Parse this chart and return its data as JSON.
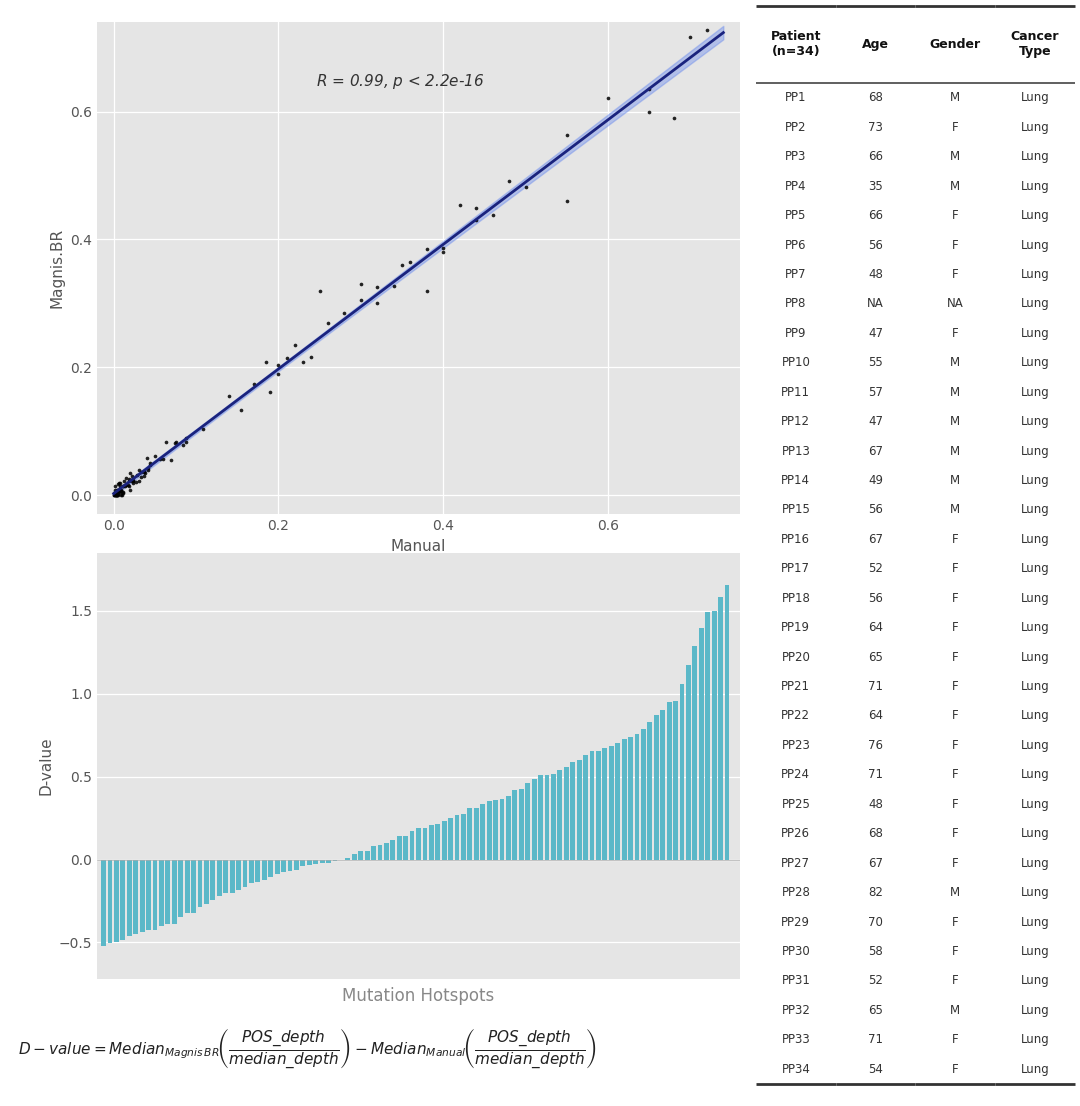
{
  "scatter_xlabel": "Manual",
  "scatter_ylabel": "Magnis.BR",
  "bar_xlabel": "Mutation Hotspots",
  "bar_ylabel": "D-value",
  "bar_color": "#5BB8C8",
  "bg_color": "#E5E5E5",
  "line_color": "#1a237e",
  "ci_color": "#6688EE",
  "table_patients": [
    "PP1",
    "PP2",
    "PP3",
    "PP4",
    "PP5",
    "PP6",
    "PP7",
    "PP8",
    "PP9",
    "PP10",
    "PP11",
    "PP12",
    "PP13",
    "PP14",
    "PP15",
    "PP16",
    "PP17",
    "PP18",
    "PP19",
    "PP20",
    "PP21",
    "PP22",
    "PP23",
    "PP24",
    "PP25",
    "PP26",
    "PP27",
    "PP28",
    "PP29",
    "PP30",
    "PP31",
    "PP32",
    "PP33",
    "PP34"
  ],
  "table_ages": [
    "68",
    "73",
    "66",
    "35",
    "66",
    "56",
    "48",
    "NA",
    "47",
    "55",
    "57",
    "47",
    "67",
    "49",
    "56",
    "67",
    "52",
    "56",
    "64",
    "65",
    "71",
    "64",
    "76",
    "71",
    "48",
    "68",
    "67",
    "82",
    "70",
    "58",
    "52",
    "65",
    "71",
    "54"
  ],
  "table_genders": [
    "M",
    "F",
    "M",
    "M",
    "F",
    "F",
    "F",
    "NA",
    "F",
    "M",
    "M",
    "M",
    "M",
    "M",
    "M",
    "F",
    "F",
    "F",
    "F",
    "F",
    "F",
    "F",
    "F",
    "F",
    "F",
    "F",
    "F",
    "M",
    "F",
    "F",
    "F",
    "M",
    "F",
    "F"
  ],
  "table_cancer": [
    "Lung",
    "Lung",
    "Lung",
    "Lung",
    "Lung",
    "Lung",
    "Lung",
    "Lung",
    "Lung",
    "Lung",
    "Lung",
    "Lung",
    "Lung",
    "Lung",
    "Lung",
    "Lung",
    "Lung",
    "Lung",
    "Lung",
    "Lung",
    "Lung",
    "Lung",
    "Lung",
    "Lung",
    "Lung",
    "Lung",
    "Lung",
    "Lung",
    "Lung",
    "Lung",
    "Lung",
    "Lung",
    "Lung",
    "Lung"
  ]
}
